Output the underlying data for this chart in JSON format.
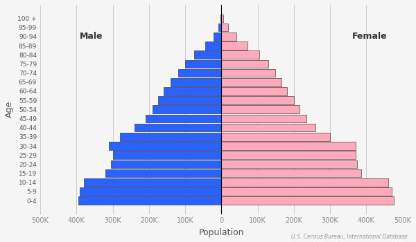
{
  "age_groups": [
    "0-4",
    "5-9",
    "10-14",
    "15-19",
    "20-24",
    "25-29",
    "30-34",
    "35-39",
    "40-44",
    "45-49",
    "50-54",
    "55-59",
    "60-64",
    "65-69",
    "70-74",
    "75-79",
    "80-84",
    "85-89",
    "90-94",
    "95-99",
    "100 +"
  ],
  "male": [
    395000,
    390000,
    380000,
    320000,
    305000,
    300000,
    310000,
    280000,
    240000,
    210000,
    190000,
    175000,
    160000,
    140000,
    120000,
    100000,
    75000,
    45000,
    22000,
    8000,
    2000
  ],
  "female": [
    475000,
    470000,
    460000,
    385000,
    375000,
    370000,
    370000,
    300000,
    260000,
    235000,
    215000,
    200000,
    182000,
    165000,
    148000,
    130000,
    105000,
    72000,
    42000,
    18000,
    5000
  ],
  "male_color": "#2962FF",
  "female_color": "#FFAABB",
  "male_label": "Male",
  "female_label": "Female",
  "xlabel": "Population",
  "ylabel": "Age",
  "xlim": 500000,
  "source_text": "U.S. Census Bureau, International Database",
  "bg_color": "#f5f5f5",
  "grid_color": "#cccccc",
  "bar_edge_color": "#222222"
}
